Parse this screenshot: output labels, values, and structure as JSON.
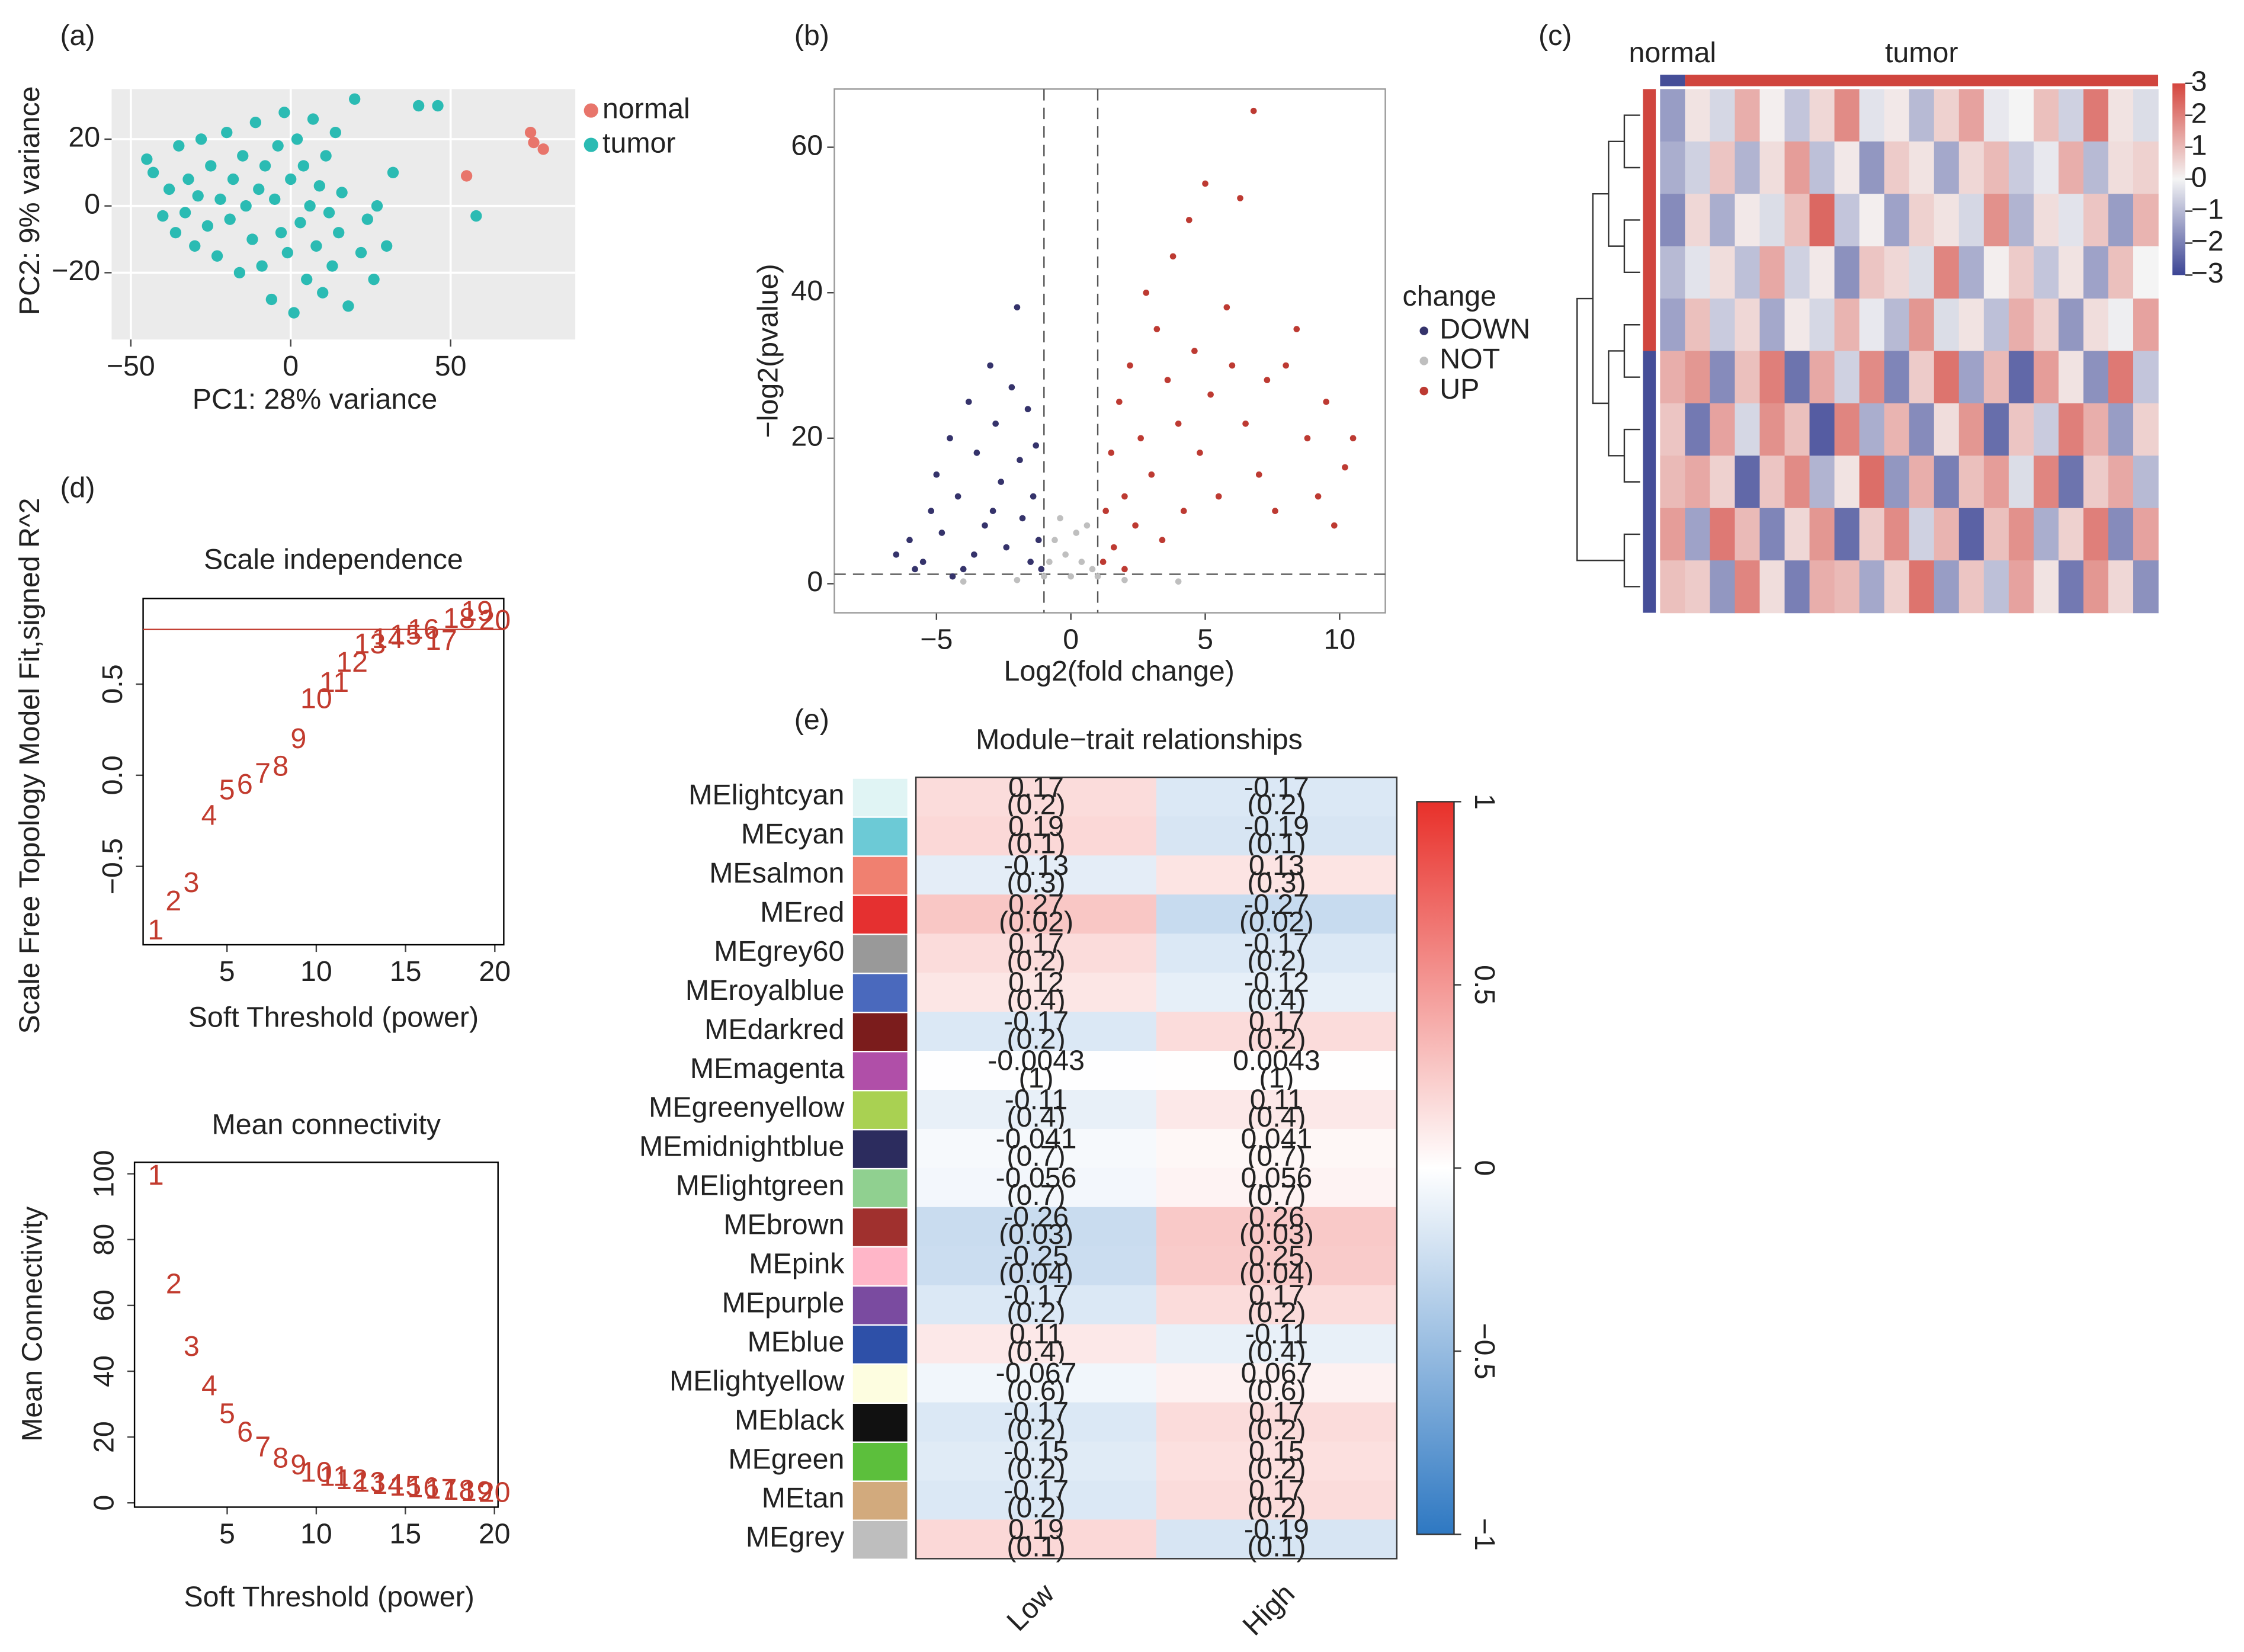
{
  "chart_data": [
    {
      "type": "scatter",
      "label": "(a)",
      "xlabel": "PC1: 28% variance",
      "ylabel": "PC2: 9% variance",
      "xlim": [
        -56,
        89
      ],
      "ylim": [
        -40,
        35
      ],
      "xticks": [
        {
          "value": -50,
          "label": "−50"
        },
        0,
        50
      ],
      "yticks": [
        {
          "value": -20,
          "label": "−20"
        },
        0,
        20
      ],
      "background": "#ebebeb",
      "grid": true,
      "legend": "right",
      "series": [
        {
          "name": "normal",
          "color": "#e8756b",
          "x": [
            75,
            76,
            79,
            55
          ],
          "values": [
            22,
            19,
            17,
            9
          ]
        },
        {
          "name": "tumor",
          "color": "#2bbbb3",
          "x": [
            -45,
            -43,
            -40,
            -38,
            -36,
            -35,
            -33,
            -32,
            -30,
            -29,
            -28,
            -26,
            -25,
            -23,
            -22,
            -20,
            -19,
            -18,
            -16,
            -15,
            -14,
            -12,
            -11,
            -10,
            -9,
            -8,
            -6,
            -5,
            -4,
            -3,
            -2,
            -1,
            0,
            1,
            2,
            3,
            4,
            5,
            6,
            7,
            8,
            9,
            10,
            11,
            12,
            13,
            14,
            15,
            16,
            18,
            20,
            22,
            24,
            26,
            27,
            30,
            32,
            40,
            46,
            58
          ],
          "values": [
            14,
            10,
            -3,
            5,
            -8,
            18,
            -2,
            8,
            -12,
            3,
            20,
            -6,
            12,
            -15,
            2,
            22,
            -4,
            8,
            -20,
            15,
            0,
            -10,
            25,
            5,
            -18,
            12,
            -28,
            2,
            18,
            -8,
            28,
            -14,
            8,
            -32,
            20,
            -5,
            12,
            -22,
            0,
            26,
            -12,
            6,
            -26,
            15,
            -2,
            -18,
            22,
            -8,
            4,
            -30,
            32,
            -14,
            -4,
            -22,
            0,
            -12,
            10,
            30,
            30,
            -3
          ]
        }
      ]
    },
    {
      "type": "scatter",
      "label": "(b)",
      "xlabel": "Log2(fold change)",
      "ylabel": "−log2(pvalue)",
      "xlim": [
        -8.8,
        11.7
      ],
      "ylim": [
        -4,
        68
      ],
      "xticks": [
        {
          "value": -5,
          "label": "−5"
        },
        0,
        5,
        10
      ],
      "yticks": [
        0,
        20,
        40,
        60
      ],
      "frame": "#999999",
      "vlines": [
        -1,
        1
      ],
      "hlines": [
        1.3
      ],
      "threshold_color": "#555555",
      "threshold_dash": true,
      "legend": "right",
      "legend_title": "change",
      "series": [
        {
          "name": "DOWN",
          "color": "#35336b",
          "x": [
            -6.5,
            -6,
            -5.5,
            -5.2,
            -5,
            -4.8,
            -4.5,
            -4.2,
            -4,
            -3.8,
            -3.5,
            -3.2,
            -3,
            -2.8,
            -2.6,
            -2.4,
            -2.2,
            -2,
            -1.9,
            -1.8,
            -1.6,
            -1.5,
            -1.4,
            -1.3,
            -1.2,
            -1.1,
            -3.6,
            -2.9,
            -4.4,
            -5.8
          ],
          "values": [
            4,
            6,
            3,
            10,
            15,
            7,
            20,
            12,
            2,
            25,
            18,
            8,
            30,
            22,
            14,
            5,
            27,
            38,
            17,
            9,
            24,
            3,
            12,
            19,
            6,
            2,
            4,
            10,
            1,
            2
          ]
        },
        {
          "name": "NOT",
          "color": "#bfbfbf",
          "x": [
            -1,
            -0.8,
            -0.6,
            -0.4,
            -0.2,
            0,
            0.2,
            0.4,
            0.6,
            0.8,
            1,
            -2,
            2,
            4,
            -4
          ],
          "values": [
            1,
            3,
            6,
            9,
            4,
            1,
            7,
            3,
            8,
            2,
            1,
            0.5,
            0.5,
            0.3,
            0.3
          ]
        },
        {
          "name": "UP",
          "color": "#bd3a32",
          "x": [
            1.2,
            1.3,
            1.5,
            1.6,
            1.8,
            2,
            2.2,
            2.4,
            2.6,
            2.8,
            3,
            3.2,
            3.4,
            3.6,
            3.8,
            4,
            4.2,
            4.4,
            4.6,
            4.8,
            5,
            5.2,
            5.5,
            5.8,
            6,
            6.3,
            6.5,
            6.8,
            7,
            7.3,
            7.6,
            8,
            8.4,
            8.8,
            9.2,
            9.5,
            9.8,
            10.2,
            10.5,
            2
          ],
          "values": [
            3,
            10,
            18,
            5,
            25,
            12,
            30,
            8,
            20,
            40,
            15,
            35,
            6,
            28,
            45,
            22,
            10,
            50,
            32,
            18,
            55,
            26,
            12,
            38,
            30,
            53,
            22,
            65,
            15,
            28,
            10,
            30,
            35,
            20,
            12,
            25,
            8,
            16,
            20,
            2
          ]
        }
      ]
    },
    {
      "type": "heatmap",
      "label": "(c)",
      "column_groups": [
        {
          "name": "normal",
          "color": "#454e98",
          "span": 1
        },
        {
          "name": "tumor",
          "color": "#d0453e",
          "span": 19
        }
      ],
      "row_groups": [
        {
          "color": "#d0453e",
          "span": 5
        },
        {
          "color": "#454e98",
          "span": 5
        }
      ],
      "clim": [
        -3,
        3
      ],
      "colors": [
        "#3c4595",
        "#f4f4f4",
        "#d5453d"
      ],
      "cticks": [
        {
          "value": -3,
          "label": "−3"
        },
        {
          "value": -2,
          "label": "−2"
        },
        {
          "value": -1,
          "label": "−1"
        },
        0,
        1,
        2,
        3
      ],
      "values": [
        [
          -1.5,
          0.3,
          -0.5,
          1.2,
          0.1,
          -0.8,
          0.5,
          1.8,
          -0.3,
          0.2,
          -1.0,
          0.6,
          1.4,
          -0.2,
          0.0,
          0.9,
          -0.6,
          2.1,
          0.3,
          -0.4
        ],
        [
          -1.2,
          -0.6,
          0.8,
          -1.1,
          0.4,
          1.5,
          -0.9,
          0.2,
          -1.6,
          0.7,
          0.3,
          -1.3,
          0.5,
          1.0,
          -0.7,
          -0.2,
          1.2,
          -1.0,
          0.4,
          0.6
        ],
        [
          -1.8,
          0.5,
          -1.2,
          0.2,
          -0.4,
          0.9,
          2.4,
          -0.8,
          0.1,
          -1.4,
          0.6,
          0.3,
          -0.5,
          1.7,
          -1.1,
          0.4,
          -0.3,
          0.8,
          -1.5,
          1.1
        ],
        [
          -1.0,
          -0.3,
          0.4,
          -0.9,
          1.3,
          -0.6,
          0.2,
          -1.7,
          0.8,
          0.5,
          -0.4,
          1.9,
          -1.2,
          0.1,
          0.7,
          -0.8,
          0.3,
          -1.4,
          0.9,
          0.0
        ],
        [
          -1.4,
          0.9,
          -0.7,
          0.5,
          -1.3,
          0.2,
          -0.5,
          1.1,
          -0.2,
          -1.0,
          1.6,
          -0.4,
          0.3,
          -0.9,
          1.2,
          0.6,
          -1.6,
          0.4,
          -0.1,
          1.4
        ],
        [
          1.2,
          1.6,
          -1.8,
          0.9,
          2.0,
          -2.2,
          1.3,
          -0.6,
          1.8,
          -1.9,
          0.7,
          2.2,
          -1.4,
          1.0,
          -2.4,
          1.5,
          0.3,
          -1.7,
          2.1,
          -0.8
        ],
        [
          0.8,
          -2.1,
          1.4,
          -0.5,
          1.7,
          0.9,
          -2.6,
          1.9,
          -1.2,
          1.1,
          -1.8,
          0.4,
          1.6,
          -2.3,
          0.8,
          -0.7,
          2.0,
          1.2,
          -1.5,
          0.6
        ],
        [
          1.0,
          1.3,
          0.6,
          -2.4,
          0.8,
          1.8,
          -1.1,
          0.3,
          2.3,
          -1.6,
          1.2,
          -2.0,
          0.9,
          1.5,
          -0.4,
          1.9,
          -2.2,
          0.7,
          1.3,
          -1.0
        ],
        [
          1.5,
          -1.4,
          2.1,
          1.0,
          -1.9,
          0.5,
          1.6,
          -2.3,
          0.7,
          1.8,
          -0.6,
          1.1,
          -2.5,
          0.9,
          1.7,
          -1.2,
          0.6,
          2.0,
          -1.8,
          1.4
        ],
        [
          0.9,
          0.7,
          -1.6,
          1.9,
          0.4,
          -2.0,
          1.2,
          1.0,
          -1.3,
          0.6,
          2.2,
          -1.5,
          0.8,
          -0.9,
          1.4,
          0.3,
          -2.1,
          1.6,
          0.5,
          -1.7
        ]
      ]
    },
    {
      "type": "scatter",
      "label": "(d)",
      "title": "Scale independence",
      "xlabel": "Soft Threshold (power)",
      "ylabel": "Scale Free Topology Model Fit,signed R^2",
      "xlim": [
        0.3,
        20.5
      ],
      "ylim": [
        -0.93,
        0.97
      ],
      "xticks": [
        5,
        10,
        15,
        20
      ],
      "yticks": [
        {
          "value": -0.5,
          "label": "−0.5"
        },
        {
          "value": 0,
          "label": "0.0"
        },
        0.5
      ],
      "frame": "#000000",
      "marker": "label",
      "hlines": [
        0.8
      ],
      "threshold_color": "#c23b2e",
      "threshold_dash": false,
      "series": [
        {
          "color": "#c23b2e",
          "x": [
            1,
            2,
            3,
            4,
            5,
            6,
            7,
            8,
            9,
            10,
            11,
            12,
            13,
            14,
            15,
            16,
            17,
            18,
            19,
            20
          ],
          "values": [
            -0.86,
            -0.7,
            -0.6,
            -0.23,
            -0.09,
            -0.06,
            0.0,
            0.04,
            0.19,
            0.41,
            0.5,
            0.61,
            0.71,
            0.74,
            0.76,
            0.79,
            0.73,
            0.85,
            0.89,
            0.84
          ]
        }
      ]
    },
    {
      "type": "scatter",
      "title": "Mean connectivity",
      "xlabel": "Soft Threshold (power)",
      "ylabel": "Mean Connectivity",
      "xlim": [
        -0.2,
        20.2
      ],
      "ylim": [
        -1.3,
        103.5
      ],
      "xticks": [
        5,
        10,
        15,
        20
      ],
      "yticks": [
        0,
        20,
        40,
        60,
        80,
        100
      ],
      "frame": "#000000",
      "marker": "label",
      "series": [
        {
          "color": "#c23b2e",
          "x": [
            1,
            2,
            3,
            4,
            5,
            6,
            7,
            8,
            9,
            10,
            11,
            12,
            13,
            14,
            15,
            16,
            17,
            18,
            19,
            20
          ],
          "values": [
            99,
            66,
            47,
            35,
            26.5,
            21,
            16.5,
            13,
            11,
            8.7,
            7.5,
            6.5,
            5.7,
            5,
            4.5,
            4,
            3.6,
            3.2,
            2.9,
            2.6
          ]
        }
      ]
    },
    {
      "type": "heatmap",
      "label": "(e)",
      "title": "Module−trait relationships",
      "rows": [
        "MElightcyan",
        "MEcyan",
        "MEsalmon",
        "MEred",
        "MEgrey60",
        "MEroyalblue",
        "MEdarkred",
        "MEmagenta",
        "MEgreenyellow",
        "MEmidnightblue",
        "MElightgreen",
        "MEbrown",
        "MEpink",
        "MEpurple",
        "MEblue",
        "MElightyellow",
        "MEblack",
        "MEgreen",
        "MEtan",
        "MEgrey"
      ],
      "row_colors": [
        "#e0f4f4",
        "#6ccad6",
        "#f08070",
        "#e53030",
        "#999999",
        "#4a69bd",
        "#7b1c1c",
        "#b04fa8",
        "#a9d152",
        "#2c2c5e",
        "#90d090",
        "#a0302e",
        "#ffb6c8",
        "#7a4ba0",
        "#2e50a8",
        "#fdfde0",
        "#111111",
        "#5cbf3c",
        "#d2aa7d",
        "#bebebe"
      ],
      "clim": [
        -1,
        1
      ],
      "colors": [
        "#2e78c2",
        "#ffffff",
        "#e8302a"
      ],
      "cticks": [
        {
          "value": -1,
          "label": "−1"
        },
        {
          "value": -0.5,
          "label": "−0.5"
        },
        0,
        0.5,
        1
      ],
      "series": [
        {
          "name": "Low",
          "values": [
            0.17,
            0.19,
            -0.13,
            0.27,
            0.17,
            0.12,
            -0.17,
            -0.0043,
            -0.11,
            -0.041,
            -0.056,
            -0.26,
            -0.25,
            -0.17,
            0.11,
            -0.067,
            -0.17,
            -0.15,
            -0.17,
            0.19
          ],
          "pvalues": [
            0.2,
            0.1,
            0.3,
            0.02,
            0.2,
            0.4,
            0.2,
            1,
            0.4,
            0.7,
            0.7,
            0.03,
            0.04,
            0.2,
            0.4,
            0.6,
            0.2,
            0.2,
            0.2,
            0.1
          ],
          "pvalue_labels": [
            "(0.2)",
            "(0.1)",
            "(0.3)",
            "(0.02)",
            "(0.2)",
            "(0.4)",
            "(0.2)",
            "(1)",
            "(0.4)",
            "(0.7)",
            "(0.7)",
            "(0.03)",
            "(0.04)",
            "(0.2)",
            "(0.4)",
            "(0.6)",
            "(0.2)",
            "(0.2)",
            "(0.2)",
            "(0.1)"
          ]
        },
        {
          "name": "High",
          "values": [
            -0.17,
            -0.19,
            0.13,
            -0.27,
            -0.17,
            -0.12,
            0.17,
            0.0043,
            0.11,
            0.041,
            0.056,
            0.26,
            0.25,
            0.17,
            -0.11,
            0.067,
            0.17,
            0.15,
            0.17,
            -0.19
          ],
          "pvalues": [
            0.2,
            0.1,
            0.3,
            0.02,
            0.2,
            0.4,
            0.2,
            1,
            0.4,
            0.7,
            0.7,
            0.03,
            0.04,
            0.2,
            0.4,
            0.6,
            0.2,
            0.2,
            0.2,
            0.1
          ],
          "pvalue_labels": [
            "(0.2)",
            "(0.1)",
            "(0.3)",
            "(0.02)",
            "(0.2)",
            "(0.4)",
            "(0.2)",
            "(1)",
            "(0.4)",
            "(0.7)",
            "(0.7)",
            "(0.03)",
            "(0.04)",
            "(0.2)",
            "(0.4)",
            "(0.6)",
            "(0.2)",
            "(0.2)",
            "(0.2)",
            "(0.1)"
          ]
        }
      ]
    }
  ]
}
